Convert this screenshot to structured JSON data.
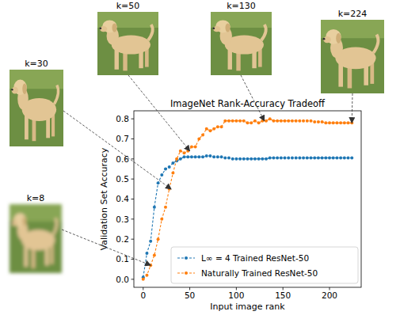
{
  "chart_data": {
    "type": "line",
    "title": "ImageNet Rank-Accuracy Tradeoff",
    "xlabel": "Input image rank",
    "ylabel": "Validation Set Accuracy",
    "x": [
      0,
      4,
      8,
      12,
      16,
      20,
      24,
      28,
      32,
      36,
      40,
      44,
      48,
      52,
      56,
      60,
      64,
      68,
      72,
      76,
      80,
      84,
      88,
      92,
      96,
      100,
      104,
      108,
      112,
      116,
      120,
      124,
      128,
      132,
      136,
      140,
      144,
      148,
      152,
      156,
      160,
      164,
      168,
      172,
      176,
      180,
      184,
      188,
      192,
      196,
      200,
      204,
      208,
      212,
      216,
      220,
      224
    ],
    "series": [
      {
        "name": "L∞ = 4 Trained ResNet-50",
        "color": "#1f77b4",
        "marker": "circle",
        "line_style": "dashed",
        "values": [
          0.01,
          0.13,
          0.19,
          0.36,
          0.48,
          0.52,
          0.55,
          0.56,
          0.58,
          0.59,
          0.6,
          0.61,
          0.61,
          0.61,
          0.61,
          0.61,
          0.61,
          0.615,
          0.615,
          0.61,
          0.61,
          0.61,
          0.605,
          0.605,
          0.6,
          0.6,
          0.6,
          0.6,
          0.6,
          0.6,
          0.6,
          0.6,
          0.6,
          0.6,
          0.605,
          0.605,
          0.605,
          0.605,
          0.605,
          0.605,
          0.605,
          0.605,
          0.605,
          0.605,
          0.605,
          0.605,
          0.605,
          0.605,
          0.605,
          0.605,
          0.605,
          0.605,
          0.605,
          0.605,
          0.605,
          0.605,
          0.605
        ]
      },
      {
        "name": "Naturally Trained ResNet-50",
        "color": "#ff7f0e",
        "marker": "circle",
        "line_style": "dashed",
        "values": [
          0.0,
          0.02,
          0.07,
          0.12,
          0.2,
          0.3,
          0.36,
          0.45,
          0.53,
          0.6,
          0.64,
          0.63,
          0.64,
          0.66,
          0.66,
          0.7,
          0.72,
          0.75,
          0.74,
          0.75,
          0.76,
          0.76,
          0.79,
          0.79,
          0.79,
          0.79,
          0.79,
          0.79,
          0.78,
          0.78,
          0.79,
          0.78,
          0.79,
          0.79,
          0.8,
          0.79,
          0.79,
          0.79,
          0.79,
          0.79,
          0.79,
          0.79,
          0.79,
          0.79,
          0.79,
          0.79,
          0.785,
          0.785,
          0.785,
          0.78,
          0.78,
          0.78,
          0.78,
          0.78,
          0.78,
          0.78,
          0.78
        ]
      }
    ],
    "xlim": [
      -10,
      234
    ],
    "ylim": [
      -0.04,
      0.84
    ],
    "xticks": [
      0,
      50,
      100,
      150,
      200
    ],
    "yticks": [
      {
        "value": 0,
        "label": "0.0"
      },
      {
        "value": 0.1,
        "label": "0.1"
      },
      {
        "value": 0.2,
        "label": "0.2"
      },
      {
        "value": 0.3,
        "label": "0.3"
      },
      {
        "value": 0.4,
        "label": "0.4"
      },
      {
        "value": 0.5,
        "label": "0.5"
      },
      {
        "value": 0.6,
        "label": "0.6"
      },
      {
        "value": 0.7,
        "label": "0.7"
      },
      {
        "value": 0.8,
        "label": "0.8"
      }
    ],
    "grid": false,
    "legend": "lower right",
    "annotations": [
      {
        "text": "k=8",
        "rank": 8
      },
      {
        "text": "k=30",
        "rank": 30
      },
      {
        "text": "k=50",
        "rank": 50
      },
      {
        "text": "k=130",
        "rank": 130
      },
      {
        "text": "k=224",
        "rank": 224
      }
    ]
  }
}
